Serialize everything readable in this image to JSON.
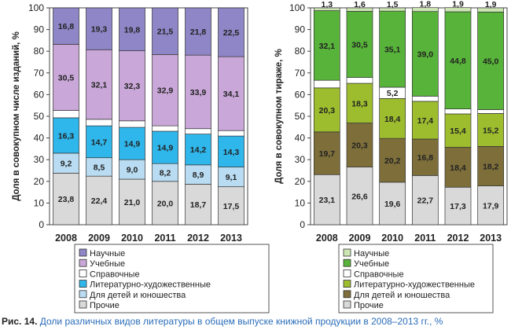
{
  "chart_data": [
    {
      "type": "bar",
      "stacked": true,
      "ylabel": "Доля в совокупном числе изданий, %",
      "ylim": [
        0,
        100
      ],
      "yticks": [
        0,
        10,
        20,
        30,
        40,
        50,
        60,
        70,
        80,
        90,
        100
      ],
      "categories": [
        "2008",
        "2009",
        "2010",
        "2011",
        "2012",
        "2013"
      ],
      "series": [
        {
          "name": "Прочие",
          "values": [
            "23,8",
            "22,4",
            "21,0",
            "20,0",
            "18,7",
            "17,5"
          ],
          "color": "#d9d9d9"
        },
        {
          "name": "Для детей и юношества",
          "values": [
            "9,2",
            "8,5",
            "9,0",
            "8,2",
            "8,9",
            "9,1"
          ],
          "color": "#b9dcf2"
        },
        {
          "name": "Литературно-художественные",
          "values": [
            "16,3",
            "14,7",
            "14,9",
            "14,9",
            "14,2",
            "14,3"
          ],
          "color": "#2fb7ec"
        },
        {
          "name": "Справочные",
          "values": [
            "3,4",
            "3,0",
            "3,0",
            "2,5",
            "2,5",
            "2,5"
          ],
          "color": "#ffffff"
        },
        {
          "name": "Учебные",
          "values": [
            "30,5",
            "32,1",
            "32,3",
            "32,9",
            "33,9",
            "34,1"
          ],
          "color": "#c9a7d8"
        },
        {
          "name": "Научные",
          "values": [
            "16,8",
            "19,3",
            "19,8",
            "21,5",
            "21,8",
            "22,5"
          ],
          "color": "#8e86c6"
        }
      ],
      "legend": [
        "Научные",
        "Учебные",
        "Справочные",
        "Литературно-художественные",
        "Для детей и юношества",
        "Прочие"
      ]
    },
    {
      "type": "bar",
      "stacked": true,
      "ylabel": "Доля в совокупном тираже, %",
      "ylim": [
        0,
        100
      ],
      "yticks": [
        0,
        10,
        20,
        30,
        40,
        50,
        60,
        70,
        80,
        90,
        100
      ],
      "categories": [
        "2008",
        "2009",
        "2010",
        "2011",
        "2012",
        "2013"
      ],
      "series": [
        {
          "name": "Прочие",
          "values": [
            "23,1",
            "26,6",
            "19,6",
            "22,7",
            "17,3",
            "17,9"
          ],
          "color": "#d9d9d9"
        },
        {
          "name": "Для детей и юношества",
          "values": [
            "19,7",
            "20,3",
            "20,2",
            "16,8",
            "18,4",
            "18,2"
          ],
          "color": "#7d6e3a"
        },
        {
          "name": "Литературно-художественные",
          "values": [
            "20,3",
            "18,3",
            "18,4",
            "17,4",
            "15,4",
            "15,2"
          ],
          "color": "#9dbd2e"
        },
        {
          "name": "Справочные",
          "values": [
            "3,5",
            "2,7",
            "5,2",
            "2,4",
            "2,3",
            "1,8"
          ],
          "color": "#ffffff"
        },
        {
          "name": "Учебные",
          "values": [
            "32,1",
            "30,5",
            "35,1",
            "39,0",
            "44,8",
            "45,0"
          ],
          "color": "#58b33a"
        },
        {
          "name": "Научные",
          "values": [
            "1,3",
            "1,6",
            "1,5",
            "1,8",
            "1,9",
            "1,9"
          ],
          "color": "#cde6b4"
        }
      ],
      "legend": [
        "Научные",
        "Учебные",
        "Справочные",
        "Литературно-художественные",
        "Для детей и юношества",
        "Прочие"
      ]
    }
  ],
  "caption": {
    "label": "Рис. 14.",
    "text": "Доли различных видов литературы в общем выпуске книжной продукции в 2008–2013 гг., %"
  }
}
